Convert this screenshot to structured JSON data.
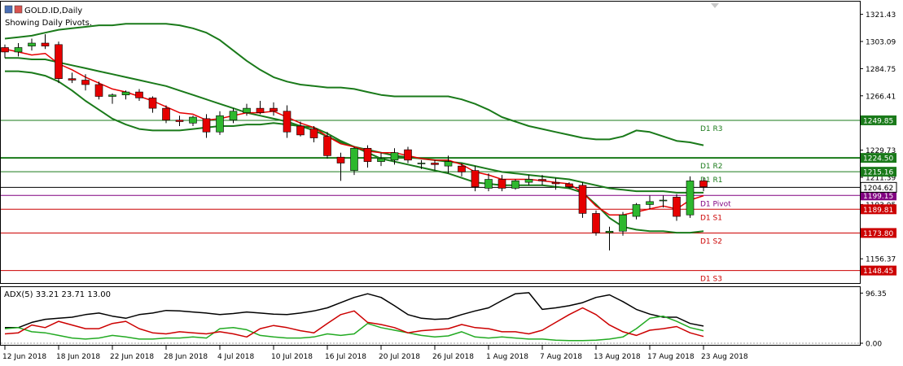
{
  "header": {
    "symbol": "GOLD.ID,Daily",
    "subtitle": "Showing Daily Pivots."
  },
  "colors": {
    "bull": "#2eb82e",
    "bear": "#e60000",
    "band": "#1a7a1a",
    "ema": "#e60000",
    "pivot": "#800080",
    "resistance": "#1a7a1a",
    "support": "#cc0000",
    "adx": "#000000",
    "plus_di": "#22aa22",
    "minus_di": "#cc0000"
  },
  "chart_data": [
    {
      "type": "candlestick",
      "title": "",
      "price_axis_ticks": [
        "1321.43",
        "1303.09",
        "1284.75",
        "1266.41",
        "1229.73",
        "1211.39",
        "1193.05",
        "1156.37"
      ],
      "ylim": [
        1140,
        1330
      ],
      "date_ticks": [
        "12 Jun 2018",
        "18 Jun 2018",
        "22 Jun 2018",
        "28 Jun 2018",
        "4 Jul 2018",
        "10 Jul 2018",
        "16 Jul 2018",
        "20 Jul 2018",
        "26 Jul 2018",
        "1 Aug 2018",
        "7 Aug 2018",
        "13 Aug 2018",
        "17 Aug 2018",
        "23 Aug 2018"
      ],
      "date_tick_index": [
        0,
        4,
        8,
        12,
        16,
        20,
        24,
        28,
        32,
        36,
        40,
        44,
        48,
        52
      ],
      "candles": [
        [
          1299,
          1301,
          1292,
          1296
        ],
        [
          1296,
          1302,
          1293,
          1299
        ],
        [
          1300,
          1305,
          1297,
          1302
        ],
        [
          1302,
          1308,
          1298,
          1300
        ],
        [
          1301,
          1303,
          1275,
          1278
        ],
        [
          1278,
          1282,
          1275,
          1277
        ],
        [
          1277,
          1281,
          1270,
          1274
        ],
        [
          1274,
          1276,
          1264,
          1266
        ],
        [
          1266,
          1268,
          1261,
          1267
        ],
        [
          1267,
          1270,
          1264,
          1269
        ],
        [
          1269,
          1271,
          1263,
          1265
        ],
        [
          1265,
          1266,
          1255,
          1258
        ],
        [
          1258,
          1260,
          1248,
          1250
        ],
        [
          1250,
          1253,
          1246,
          1249
        ],
        [
          1248,
          1253,
          1246,
          1252
        ],
        [
          1251,
          1254,
          1238,
          1242
        ],
        [
          1242,
          1256,
          1240,
          1253
        ],
        [
          1250,
          1258,
          1248,
          1256
        ],
        [
          1255,
          1261,
          1253,
          1258
        ],
        [
          1258,
          1263,
          1254,
          1255
        ],
        [
          1258,
          1262,
          1253,
          1256
        ],
        [
          1256,
          1260,
          1238,
          1242
        ],
        [
          1246,
          1249,
          1239,
          1240
        ],
        [
          1244,
          1246,
          1235,
          1238
        ],
        [
          1239,
          1242,
          1224,
          1226
        ],
        [
          1225,
          1228,
          1209,
          1221
        ],
        [
          1216,
          1232,
          1213,
          1231
        ],
        [
          1231,
          1233,
          1218,
          1222
        ],
        [
          1222,
          1228,
          1219,
          1224
        ],
        [
          1223,
          1231,
          1220,
          1228
        ],
        [
          1230,
          1232,
          1221,
          1223
        ],
        [
          1221,
          1223,
          1217,
          1221
        ],
        [
          1221,
          1223,
          1216,
          1220
        ],
        [
          1219,
          1226,
          1214,
          1222
        ],
        [
          1219,
          1221,
          1212,
          1215
        ],
        [
          1216,
          1219,
          1202,
          1205
        ],
        [
          1204,
          1214,
          1202,
          1210
        ],
        [
          1210,
          1213,
          1202,
          1204
        ],
        [
          1204,
          1210,
          1203,
          1209
        ],
        [
          1208,
          1213,
          1206,
          1210
        ],
        [
          1210,
          1213,
          1206,
          1209
        ],
        [
          1208,
          1211,
          1203,
          1207
        ],
        [
          1207,
          1208,
          1204,
          1205
        ],
        [
          1206,
          1208,
          1184,
          1187
        ],
        [
          1187,
          1189,
          1172,
          1174
        ],
        [
          1174,
          1178,
          1162,
          1175
        ],
        [
          1175,
          1188,
          1172,
          1186
        ],
        [
          1185,
          1194,
          1183,
          1193
        ],
        [
          1193,
          1199,
          1190,
          1195
        ],
        [
          1196,
          1199,
          1191,
          1196
        ],
        [
          1198,
          1200,
          1182,
          1185
        ],
        [
          1186,
          1212,
          1184,
          1209
        ],
        [
          1209,
          1211,
          1202,
          1205
        ]
      ],
      "ema": [
        1298,
        1296,
        1294,
        1295,
        1288,
        1284,
        1279,
        1275,
        1271,
        1269,
        1266,
        1263,
        1259,
        1255,
        1254,
        1250,
        1251,
        1253,
        1255,
        1255,
        1256,
        1252,
        1248,
        1245,
        1239,
        1234,
        1232,
        1229,
        1228,
        1228,
        1226,
        1224,
        1223,
        1223,
        1220,
        1215,
        1213,
        1210,
        1210,
        1210,
        1209,
        1208,
        1207,
        1201,
        1192,
        1186,
        1186,
        1188,
        1190,
        1192,
        1190,
        1196,
        1199
      ],
      "bb_upper": [
        1305,
        1306,
        1307,
        1309,
        1311,
        1312,
        1313,
        1314,
        1314,
        1315,
        1315,
        1315,
        1315,
        1314,
        1312,
        1309,
        1304,
        1297,
        1290,
        1284,
        1279,
        1276,
        1274,
        1273,
        1272,
        1272,
        1271,
        1269,
        1267,
        1266,
        1266,
        1266,
        1266,
        1266,
        1264,
        1261,
        1257,
        1252,
        1249,
        1246,
        1244,
        1242,
        1240,
        1238,
        1237,
        1237,
        1239,
        1243,
        1242,
        1239,
        1236,
        1235,
        1233
      ],
      "bb_middle": [
        1292,
        1292,
        1291,
        1291,
        1289,
        1287,
        1285,
        1283,
        1281,
        1279,
        1277,
        1275,
        1273,
        1270,
        1267,
        1264,
        1261,
        1258,
        1255,
        1253,
        1251,
        1249,
        1246,
        1243,
        1239,
        1235,
        1232,
        1230,
        1228,
        1226,
        1225,
        1224,
        1223,
        1222,
        1221,
        1219,
        1217,
        1215,
        1214,
        1213,
        1212,
        1211,
        1210,
        1208,
        1206,
        1204,
        1203,
        1202,
        1202,
        1202,
        1201,
        1201,
        1201
      ],
      "bb_lower": [
        1283,
        1283,
        1282,
        1280,
        1276,
        1270,
        1263,
        1257,
        1251,
        1247,
        1244,
        1243,
        1243,
        1243,
        1244,
        1245,
        1246,
        1246,
        1247,
        1247,
        1248,
        1247,
        1246,
        1245,
        1241,
        1236,
        1232,
        1228,
        1224,
        1222,
        1220,
        1218,
        1216,
        1214,
        1211,
        1208,
        1207,
        1206,
        1206,
        1206,
        1206,
        1205,
        1204,
        1201,
        1193,
        1184,
        1178,
        1176,
        1175,
        1175,
        1174,
        1174,
        1175
      ],
      "pivot_levels": [
        {
          "label": "D1 R3",
          "value": 1249.85,
          "tag": "1249.85",
          "kind": "resistance"
        },
        {
          "label": "D1 R2",
          "value": 1224.5,
          "tag": "1224.50",
          "kind": "resistance"
        },
        {
          "label": "D1 R1",
          "value": 1215.16,
          "tag": "1215.16",
          "kind": "resistance"
        },
        {
          "label": "D1 Pivot",
          "value": 1199.15,
          "tag": "1199.15",
          "kind": "pivot"
        },
        {
          "label": "D1 S1",
          "value": 1189.81,
          "tag": "1189.81",
          "kind": "support"
        },
        {
          "label": "D1 S2",
          "value": 1173.8,
          "tag": "1173.80",
          "kind": "support"
        },
        {
          "label": "D1 S3",
          "value": 1148.45,
          "tag": "1148.45",
          "kind": "support"
        }
      ],
      "current_price": {
        "value": 1204.62,
        "tag": "1204.62"
      }
    },
    {
      "type": "line",
      "title": "ADX(5) 33.21 23.71 13.00",
      "axis_ticks": [
        "96.35",
        "0.00"
      ],
      "ylim": [
        0,
        100
      ],
      "adx": [
        30,
        30,
        40,
        46,
        48,
        50,
        55,
        58,
        52,
        48,
        55,
        58,
        63,
        62,
        60,
        58,
        55,
        57,
        60,
        58,
        56,
        55,
        58,
        62,
        68,
        78,
        88,
        95,
        88,
        72,
        55,
        48,
        46,
        47,
        55,
        62,
        68,
        82,
        95,
        97,
        65,
        68,
        72,
        78,
        88,
        93,
        80,
        65,
        56,
        50,
        50,
        38,
        33
      ],
      "plus_di": [
        28,
        30,
        22,
        20,
        15,
        10,
        8,
        10,
        15,
        12,
        8,
        8,
        10,
        10,
        12,
        10,
        28,
        30,
        26,
        15,
        12,
        10,
        10,
        12,
        18,
        15,
        18,
        38,
        30,
        25,
        20,
        15,
        12,
        14,
        22,
        12,
        10,
        12,
        10,
        8,
        8,
        6,
        5,
        5,
        6,
        8,
        12,
        28,
        48,
        52,
        42,
        30,
        24
      ],
      "minus_di": [
        18,
        20,
        35,
        30,
        42,
        35,
        28,
        28,
        38,
        42,
        28,
        20,
        18,
        22,
        20,
        18,
        22,
        18,
        12,
        28,
        34,
        30,
        24,
        20,
        38,
        55,
        62,
        40,
        36,
        30,
        20,
        24,
        26,
        28,
        36,
        30,
        28,
        22,
        22,
        18,
        25,
        40,
        55,
        68,
        55,
        35,
        22,
        15,
        25,
        28,
        32,
        20,
        13
      ]
    }
  ]
}
